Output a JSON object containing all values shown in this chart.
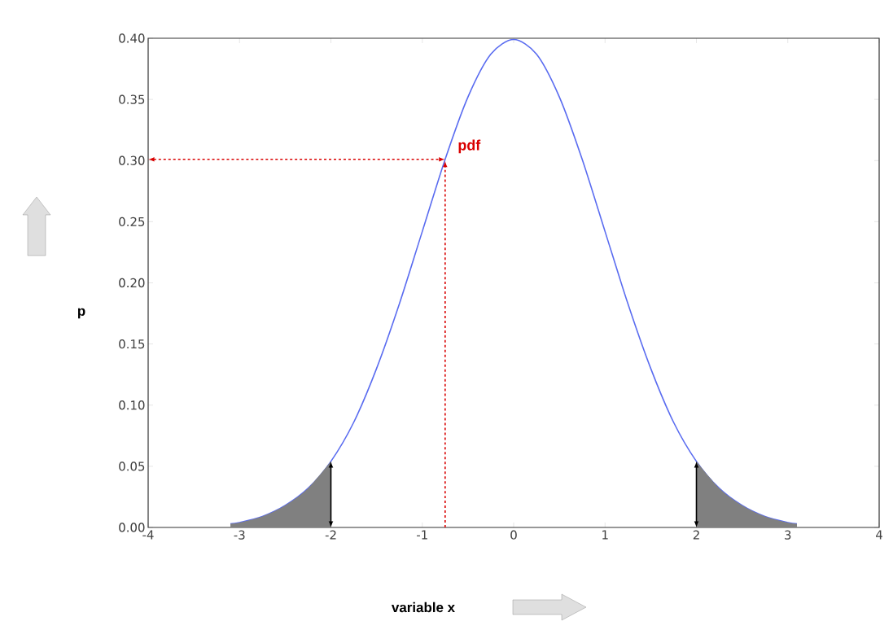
{
  "chart_data": {
    "type": "line",
    "xlabel": "variable x",
    "ylabel": "p",
    "xlim": [
      -4,
      4
    ],
    "ylim": [
      0,
      0.4
    ],
    "xticks": [
      -4,
      -3,
      -2,
      -1,
      0,
      1,
      2,
      3,
      4
    ],
    "yticks": [
      {
        "value": 0,
        "label": "0.00"
      },
      {
        "value": 0.05,
        "label": "0.05"
      },
      {
        "value": 0.1,
        "label": "0.10"
      },
      {
        "value": 0.15,
        "label": "0.15"
      },
      {
        "value": 0.2,
        "label": "0.20"
      },
      {
        "value": 0.25,
        "label": "0.25"
      },
      {
        "value": 0.3,
        "label": "0.30"
      },
      {
        "value": 0.35,
        "label": "0.35"
      },
      {
        "value": 0.4,
        "label": "0.40"
      }
    ],
    "series": [
      {
        "color": "#5a6cf0",
        "x": [
          -3.1,
          -3,
          -2.75,
          -2.5,
          -2.25,
          -2,
          -1.75,
          -1.5,
          -1.25,
          -1,
          -0.75,
          -0.5,
          -0.25,
          0,
          0.25,
          0.5,
          0.75,
          1,
          1.25,
          1.5,
          1.75,
          2,
          2.25,
          2.5,
          2.75,
          3,
          3.1
        ],
        "values": [
          0.003,
          0.004,
          0.009,
          0.018,
          0.032,
          0.054,
          0.086,
          0.13,
          0.183,
          0.242,
          0.301,
          0.352,
          0.387,
          0.399,
          0.387,
          0.352,
          0.301,
          0.242,
          0.183,
          0.13,
          0.086,
          0.054,
          0.032,
          0.018,
          0.009,
          0.004,
          0.003
        ]
      },
      {
        "type": "area",
        "color": "#808080",
        "x": [
          -3.1,
          -3,
          -2.75,
          -2.5,
          -2.25,
          -2
        ],
        "values": [
          0.003,
          0.004,
          0.009,
          0.018,
          0.032,
          0.054
        ]
      },
      {
        "type": "area",
        "color": "#808080",
        "x": [
          2,
          2.25,
          2.5,
          2.75,
          3,
          3.1
        ],
        "values": [
          0.054,
          0.032,
          0.018,
          0.009,
          0.004,
          0.003
        ]
      }
    ],
    "annotations": [
      {
        "text": "pdf",
        "x": -0.75,
        "y": 0.301
      }
    ]
  }
}
